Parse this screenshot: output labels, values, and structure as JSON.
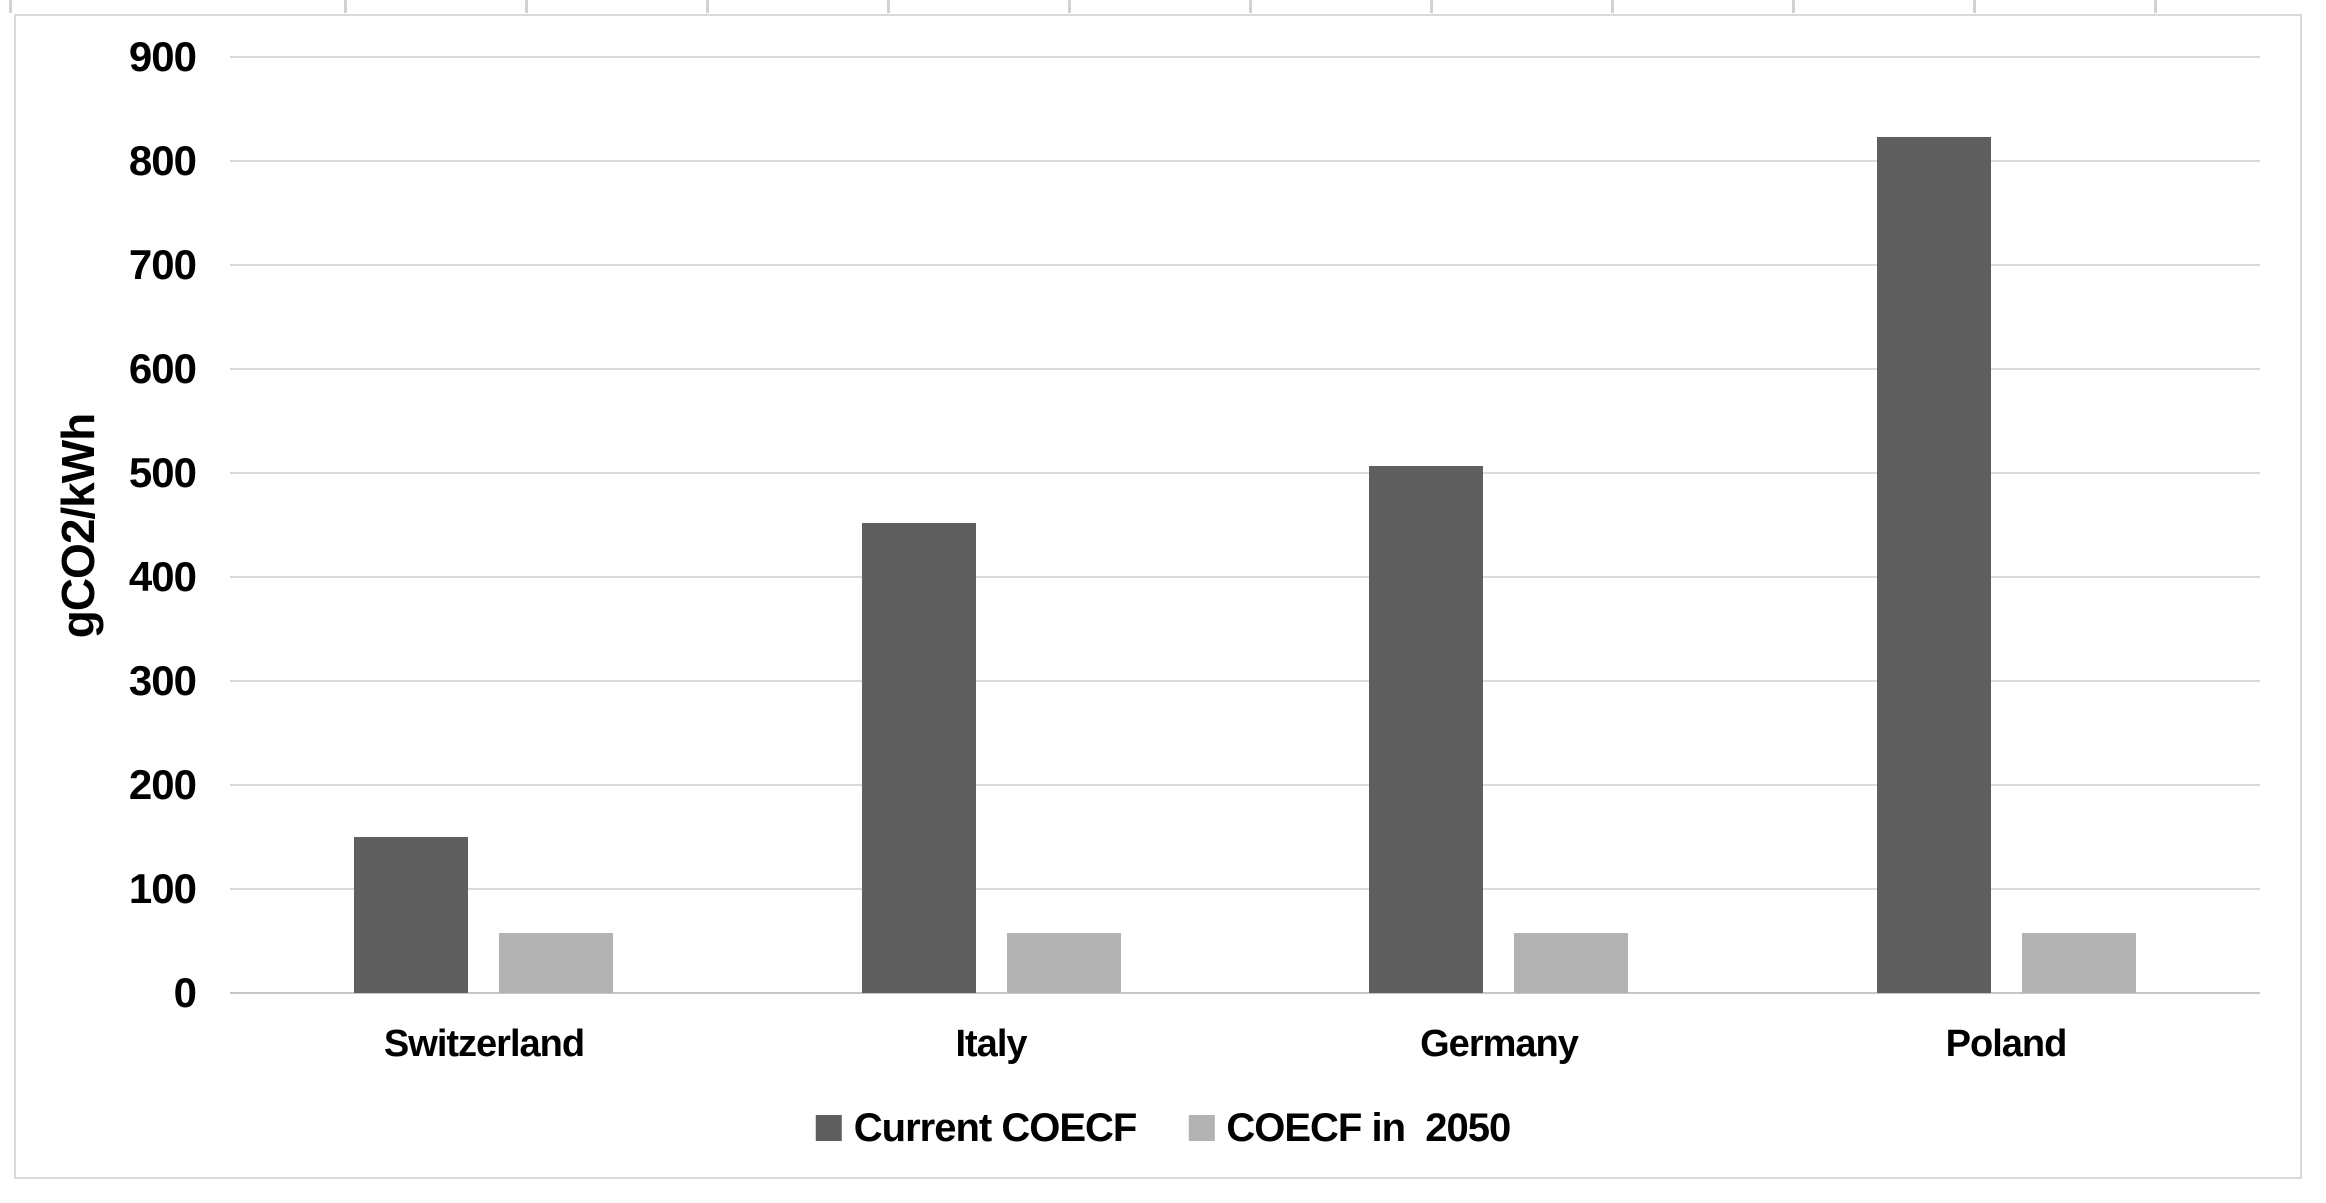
{
  "chart_data": {
    "type": "bar",
    "title": "",
    "ylabel": "gCO2/kWh",
    "xlabel": "",
    "categories": [
      "Switzerland",
      "Italy",
      "Germany",
      "Poland"
    ],
    "series": [
      {
        "name": "Current COECF",
        "color": "#5f5f5f",
        "values": [
          150,
          452,
          507,
          823
        ]
      },
      {
        "name": "COECF in  2050",
        "color": "#b3b3b3",
        "values": [
          58,
          58,
          58,
          58
        ]
      }
    ],
    "ylim": [
      0,
      900
    ],
    "yticks": [
      0,
      100,
      200,
      300,
      400,
      500,
      600,
      700,
      800,
      900
    ],
    "grid": "horizontal",
    "legend_position": "bottom-center",
    "colors": {
      "gridline": "#dadada",
      "axis_line": "#c6c6c6",
      "frame_border": "#d9d9d9",
      "text": "#000000",
      "background": "#ffffff"
    }
  }
}
